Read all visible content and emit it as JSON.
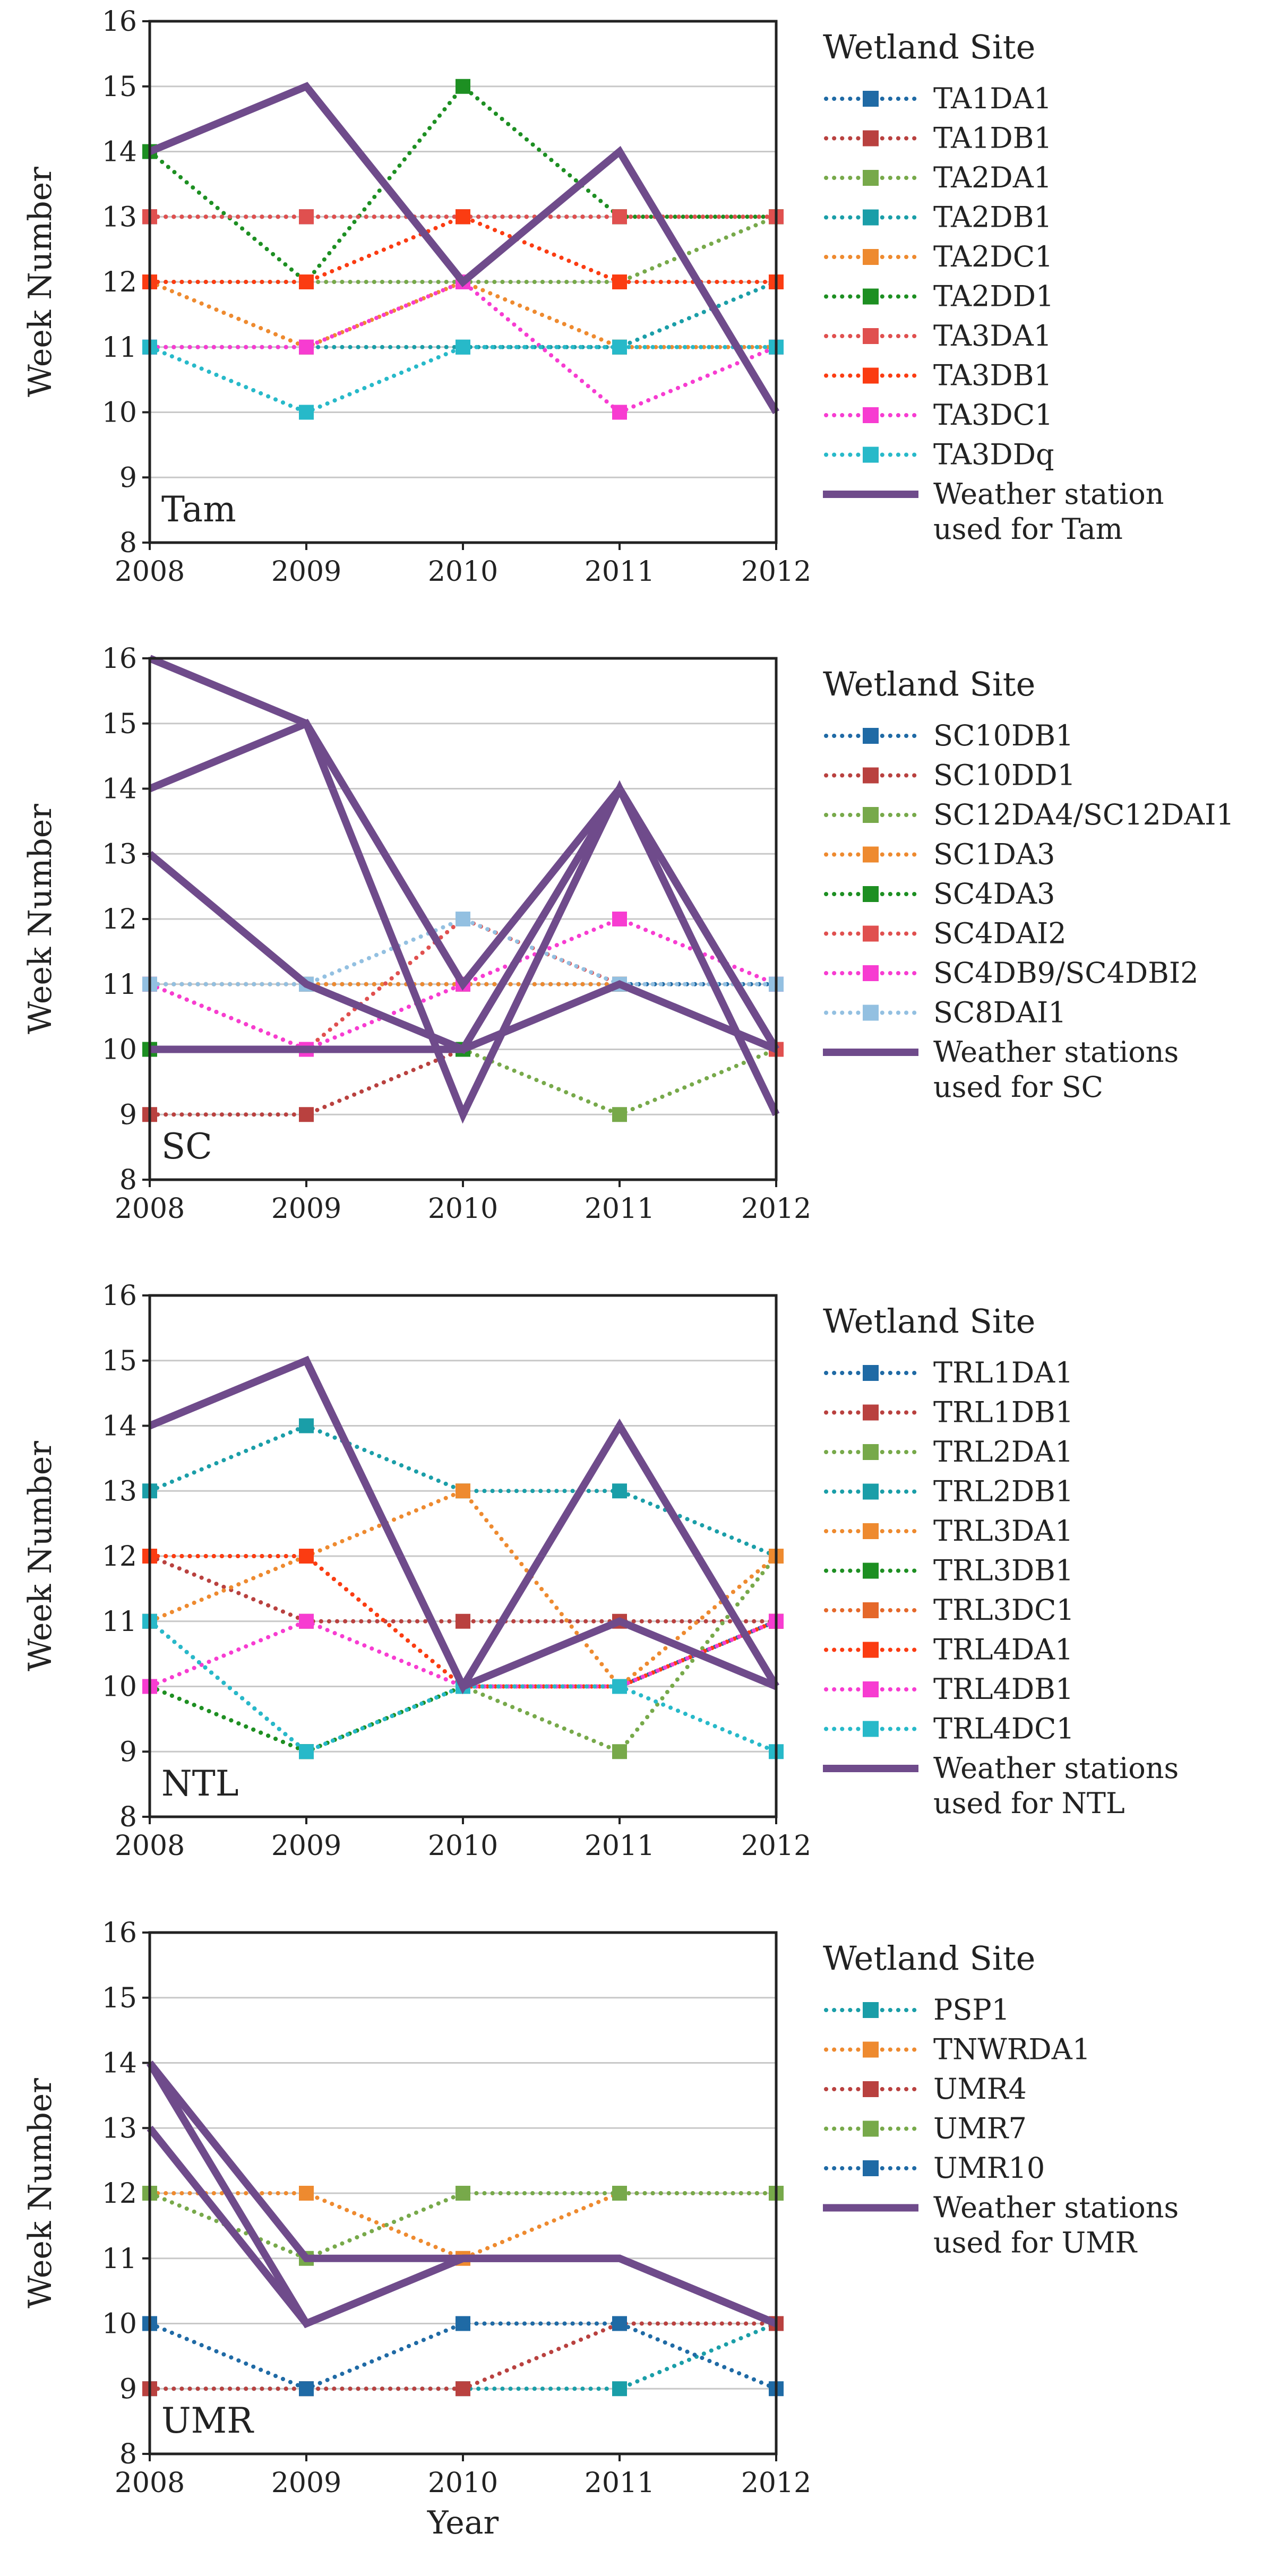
{
  "chart_data": [
    {
      "type": "line",
      "panel_label": "Tam",
      "ylabel": "Week Number",
      "xlabel": "",
      "x": [
        2008,
        2009,
        2010,
        2011,
        2012
      ],
      "xlim": [
        2008,
        2012
      ],
      "ylim": [
        8,
        16
      ],
      "yticks": [
        8,
        9,
        10,
        11,
        12,
        13,
        14,
        15,
        16
      ],
      "grid": true,
      "legend_title": "Wetland Site",
      "legend_position": "right",
      "series": [
        {
          "name": "TA1DA1",
          "color": "#1f6aa5",
          "style": "dotted",
          "marker": "square",
          "values": [
            13,
            13,
            13,
            13,
            13
          ]
        },
        {
          "name": "TA1DB1",
          "color": "#b9413f",
          "style": "dotted",
          "marker": "square",
          "values": [
            13,
            13,
            13,
            13,
            13
          ]
        },
        {
          "name": "TA2DA1",
          "color": "#77a94a",
          "style": "dotted",
          "marker": "square",
          "values": [
            12,
            12,
            12,
            12,
            13
          ]
        },
        {
          "name": "TA2DB1",
          "color": "#1a9ea8",
          "style": "dotted",
          "marker": "square",
          "values": [
            11,
            11,
            11,
            11,
            12
          ]
        },
        {
          "name": "TA2DC1",
          "color": "#ee8a2f",
          "style": "dotted",
          "marker": "square",
          "values": [
            12,
            11,
            12,
            11,
            11
          ]
        },
        {
          "name": "TA2DD1",
          "color": "#1d8f22",
          "style": "dotted",
          "marker": "square",
          "values": [
            14,
            12,
            15,
            13,
            13
          ]
        },
        {
          "name": "TA3DA1",
          "color": "#e0504f",
          "style": "dotted",
          "marker": "square",
          "values": [
            13,
            13,
            13,
            13,
            13
          ]
        },
        {
          "name": "TA3DB1",
          "color": "#fb3c12",
          "style": "dotted",
          "marker": "square",
          "values": [
            12,
            12,
            13,
            12,
            12
          ]
        },
        {
          "name": "TA3DC1",
          "color": "#f73cd1",
          "style": "dotted",
          "marker": "square",
          "values": [
            11,
            11,
            12,
            10,
            11
          ]
        },
        {
          "name": "TA3DDq",
          "color": "#27b9c9",
          "style": "dotted",
          "marker": "square",
          "values": [
            11,
            10,
            11,
            11,
            11
          ]
        },
        {
          "name": "Weather station used for Tam",
          "label_lines": [
            "Weather station",
            "used for Tam"
          ],
          "color": "#6f4b8b",
          "style": "solid",
          "marker": "none",
          "values": [
            14,
            15,
            12,
            14,
            10
          ]
        }
      ]
    },
    {
      "type": "line",
      "panel_label": "SC",
      "ylabel": "Week Number",
      "xlabel": "",
      "x": [
        2008,
        2009,
        2010,
        2011,
        2012
      ],
      "xlim": [
        2008,
        2012
      ],
      "ylim": [
        8,
        16
      ],
      "yticks": [
        8,
        9,
        10,
        11,
        12,
        13,
        14,
        15,
        16
      ],
      "grid": true,
      "legend_title": "Wetland Site",
      "legend_position": "right",
      "series": [
        {
          "name": "SC10DB1",
          "color": "#1f6aa5",
          "style": "dotted",
          "marker": "square",
          "values": [
            11,
            11,
            11,
            11,
            11
          ]
        },
        {
          "name": "SC10DD1",
          "color": "#b9413f",
          "style": "dotted",
          "marker": "square",
          "values": [
            9,
            9,
            10,
            11,
            10
          ]
        },
        {
          "name": "SC12DA4/SC12DAI1",
          "color": "#77a94a",
          "style": "dotted",
          "marker": "square",
          "values": [
            10,
            10,
            10,
            9,
            10
          ]
        },
        {
          "name": "SC1DA3",
          "color": "#ee8a2f",
          "style": "dotted",
          "marker": "square",
          "values": [
            11,
            11,
            11,
            11,
            10
          ]
        },
        {
          "name": "SC4DA3",
          "color": "#1d8f22",
          "style": "dotted",
          "marker": "square",
          "values": [
            10,
            10,
            10,
            11,
            10
          ]
        },
        {
          "name": "SC4DAI2",
          "color": "#e0504f",
          "style": "dotted",
          "marker": "square",
          "values": [
            11,
            10,
            12,
            11,
            10
          ]
        },
        {
          "name": "SC4DB9/SC4DBI2",
          "color": "#f73cd1",
          "style": "dotted",
          "marker": "square",
          "values": [
            11,
            10,
            11,
            12,
            11
          ]
        },
        {
          "name": "SC8DAI1",
          "color": "#93c0e1",
          "style": "dotted",
          "marker": "square",
          "values": [
            11,
            11,
            12,
            11,
            11
          ]
        },
        {
          "name": "Weather stations used for SC",
          "label_lines": [
            "Weather stations",
            "used for SC"
          ],
          "color": "#6f4b8b",
          "style": "solid",
          "marker": "none",
          "values": [
            16,
            15,
            9,
            14,
            9
          ]
        },
        {
          "name": "Weather stations used for SC (2)",
          "legend": false,
          "color": "#6f4b8b",
          "style": "solid",
          "marker": "none",
          "values": [
            14,
            15,
            11,
            14,
            10
          ]
        },
        {
          "name": "Weather stations used for SC (3)",
          "legend": false,
          "color": "#6f4b8b",
          "style": "solid",
          "marker": "none",
          "values": [
            13,
            11,
            10,
            14,
            10
          ]
        },
        {
          "name": "Weather stations used for SC (4)",
          "legend": false,
          "color": "#6f4b8b",
          "style": "solid",
          "marker": "none",
          "values": [
            10,
            10,
            10,
            11,
            10
          ]
        }
      ]
    },
    {
      "type": "line",
      "panel_label": "NTL",
      "ylabel": "Week Number",
      "xlabel": "",
      "x": [
        2008,
        2009,
        2010,
        2011,
        2012
      ],
      "xlim": [
        2008,
        2012
      ],
      "ylim": [
        8,
        16
      ],
      "yticks": [
        8,
        9,
        10,
        11,
        12,
        13,
        14,
        15,
        16
      ],
      "grid": true,
      "legend_title": "Wetland Site",
      "legend_position": "right",
      "series": [
        {
          "name": "TRL1DA1",
          "color": "#1f6aa5",
          "style": "dotted",
          "marker": "square",
          "values": [
            11,
            9,
            10,
            10,
            11
          ]
        },
        {
          "name": "TRL1DB1",
          "color": "#b9413f",
          "style": "dotted",
          "marker": "square",
          "values": [
            12,
            11,
            11,
            11,
            11
          ]
        },
        {
          "name": "TRL2DA1",
          "color": "#77a94a",
          "style": "dotted",
          "marker": "square",
          "values": [
            10,
            9,
            10,
            9,
            12
          ]
        },
        {
          "name": "TRL2DB1",
          "color": "#1a9ea8",
          "style": "dotted",
          "marker": "square",
          "values": [
            13,
            14,
            13,
            13,
            12
          ]
        },
        {
          "name": "TRL3DA1",
          "color": "#ee8a2f",
          "style": "dotted",
          "marker": "square",
          "values": [
            11,
            12,
            13,
            10,
            12
          ]
        },
        {
          "name": "TRL3DB1",
          "color": "#1d8f22",
          "style": "dotted",
          "marker": "square",
          "values": [
            10,
            9,
            10,
            10,
            11
          ]
        },
        {
          "name": "TRL3DC1",
          "color": "#e5682a",
          "style": "dotted",
          "marker": "square",
          "values": [
            12,
            12,
            10,
            10,
            11
          ]
        },
        {
          "name": "TRL4DA1",
          "color": "#fb3c12",
          "style": "dotted",
          "marker": "square",
          "values": [
            12,
            12,
            10,
            10,
            11
          ]
        },
        {
          "name": "TRL4DB1",
          "color": "#f73cd1",
          "style": "dotted",
          "marker": "square",
          "values": [
            10,
            11,
            10,
            10,
            11
          ]
        },
        {
          "name": "TRL4DC1",
          "color": "#27b9c9",
          "style": "dotted",
          "marker": "square",
          "values": [
            11,
            9,
            10,
            10,
            9
          ]
        },
        {
          "name": "Weather stations used for NTL",
          "label_lines": [
            "Weather stations",
            "used for NTL"
          ],
          "color": "#6f4b8b",
          "style": "solid",
          "marker": "none",
          "values": [
            14,
            15,
            10,
            14,
            10
          ]
        },
        {
          "name": "Weather stations used for NTL (2)",
          "legend": false,
          "color": "#6f4b8b",
          "style": "solid",
          "marker": "none",
          "values": [
            14,
            15,
            10,
            11,
            10
          ]
        }
      ]
    },
    {
      "type": "line",
      "panel_label": "UMR",
      "ylabel": "Week Number",
      "xlabel": "Year",
      "x": [
        2008,
        2009,
        2010,
        2011,
        2012
      ],
      "xlim": [
        2008,
        2012
      ],
      "ylim": [
        8,
        16
      ],
      "yticks": [
        8,
        9,
        10,
        11,
        12,
        13,
        14,
        15,
        16
      ],
      "grid": true,
      "legend_title": "Wetland Site",
      "legend_position": "right",
      "series": [
        {
          "name": "PSP1",
          "color": "#1a9ea8",
          "style": "dotted",
          "marker": "square",
          "values": [
            9,
            9,
            9,
            9,
            10
          ]
        },
        {
          "name": "TNWRDA1",
          "color": "#ee8a2f",
          "style": "dotted",
          "marker": "square",
          "values": [
            12,
            12,
            11,
            12,
            12
          ]
        },
        {
          "name": "UMR4",
          "color": "#b9413f",
          "style": "dotted",
          "marker": "square",
          "values": [
            9,
            9,
            9,
            10,
            10
          ]
        },
        {
          "name": "UMR7",
          "color": "#77a94a",
          "style": "dotted",
          "marker": "square",
          "values": [
            12,
            11,
            12,
            12,
            12
          ]
        },
        {
          "name": "UMR10",
          "color": "#1f6aa5",
          "style": "dotted",
          "marker": "square",
          "values": [
            10,
            9,
            10,
            10,
            9
          ]
        },
        {
          "name": "Weather stations used for UMR",
          "label_lines": [
            "Weather stations",
            "used for UMR"
          ],
          "color": "#6f4b8b",
          "style": "solid",
          "marker": "none",
          "values": [
            14,
            11,
            11,
            11,
            10
          ]
        },
        {
          "name": "Weather stations used for UMR (2)",
          "legend": false,
          "color": "#6f4b8b",
          "style": "solid",
          "marker": "none",
          "values": [
            13,
            10,
            11,
            11,
            10
          ]
        },
        {
          "name": "Weather stations used for UMR (3)",
          "legend": false,
          "color": "#6f4b8b",
          "style": "solid",
          "marker": "none",
          "values": [
            14,
            10,
            11,
            11,
            10
          ]
        }
      ]
    }
  ]
}
